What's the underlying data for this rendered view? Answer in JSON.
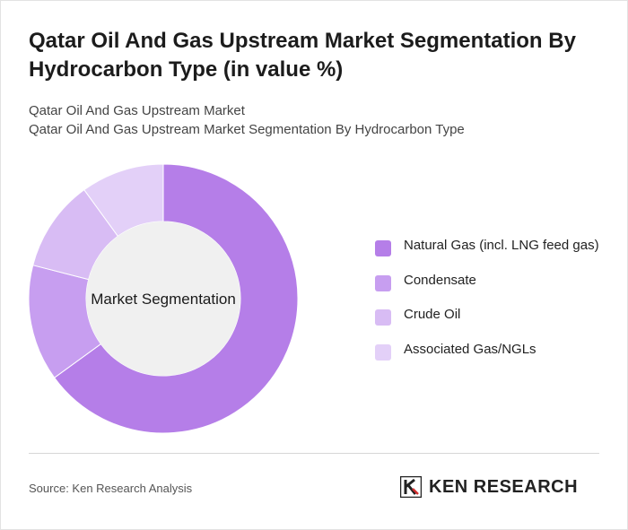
{
  "header": {
    "title": "Qatar Oil And Gas Upstream Market Segmentation By Hydrocarbon Type (in value %)",
    "subtitle_1": "Qatar Oil And Gas Upstream Market",
    "subtitle_2": "Qatar Oil And Gas Upstream Market Segmentation By Hydrocarbon Type"
  },
  "chart_data": {
    "type": "pie",
    "center_label": "Market Segmentation",
    "categories": [
      "Natural Gas (incl. LNG feed gas)",
      "Condensate",
      "Crude Oil",
      "Associated Gas/NGLs"
    ],
    "values": [
      65,
      14,
      11,
      10
    ],
    "colors": [
      "#b57ee8",
      "#c79ef0",
      "#d8bcf4",
      "#e3d0f8"
    ],
    "legend_position": "right"
  },
  "footer": {
    "source": "Source: Ken Research Analysis",
    "logo_text": "KEN RESEARCH"
  }
}
